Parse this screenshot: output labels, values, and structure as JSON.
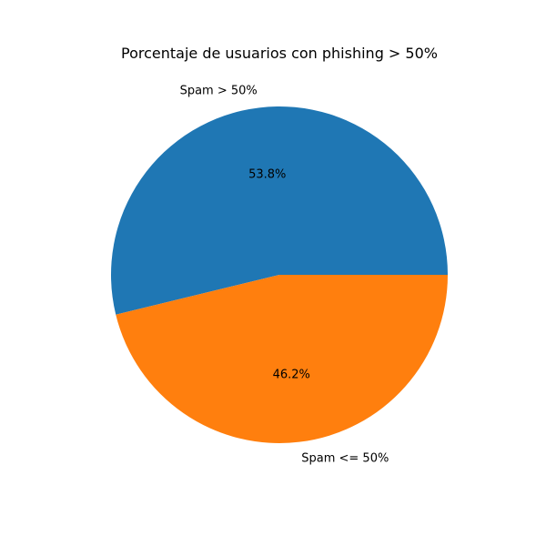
{
  "chart_data": {
    "type": "pie",
    "title": "Porcentaje de usuarios con phishing > 50%",
    "labels": [
      "Spam > 50%",
      "Spam <= 50%"
    ],
    "values": [
      53.8,
      46.2
    ],
    "percent_labels": [
      "53.8%",
      "46.2%"
    ],
    "colors": [
      "#1f77b4",
      "#ff7f0e"
    ],
    "start_angle_deg": 0,
    "direction": "counterclockwise"
  }
}
